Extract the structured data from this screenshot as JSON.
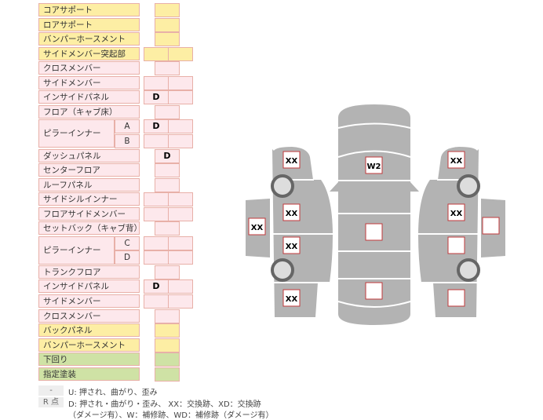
{
  "parts": [
    {
      "label": "コアサポート",
      "color": "yellow",
      "cols": 1,
      "marks": [
        ""
      ]
    },
    {
      "label": "ロアサポート",
      "color": "yellow",
      "cols": 1,
      "marks": [
        ""
      ]
    },
    {
      "label": "バンパーホースメント",
      "color": "yellow",
      "cols": 1,
      "marks": [
        ""
      ]
    },
    {
      "label": "サイドメンバー突起部",
      "color": "yellow",
      "cols": 2,
      "marks": [
        "",
        ""
      ]
    },
    {
      "label": "クロスメンバー",
      "color": "pink",
      "cols": 1,
      "marks": [
        ""
      ]
    },
    {
      "label": "サイドメンバー",
      "color": "pink",
      "cols": 2,
      "marks": [
        "",
        ""
      ]
    },
    {
      "label": "インサイドパネル",
      "color": "pink",
      "cols": 2,
      "marks": [
        "D",
        ""
      ]
    },
    {
      "label": "フロア（キャブ床）",
      "color": "pink",
      "cols": 1,
      "marks": [
        ""
      ]
    },
    {
      "label": "ピラーインナー",
      "color": "pink",
      "cols": 2,
      "sub": [
        "A",
        "B"
      ],
      "marks": [
        "D",
        "",
        "",
        ""
      ]
    },
    {
      "label": "ダッシュパネル",
      "color": "pink",
      "cols": 1,
      "marks": [
        "D"
      ]
    },
    {
      "label": "センターフロア",
      "color": "pink",
      "cols": 1,
      "marks": [
        ""
      ]
    },
    {
      "label": "ルーフパネル",
      "color": "pink",
      "cols": 1,
      "marks": [
        ""
      ]
    },
    {
      "label": "サイドシルインナー",
      "color": "pink",
      "cols": 2,
      "marks": [
        "",
        ""
      ]
    },
    {
      "label": "フロアサイドメンバー",
      "color": "pink",
      "cols": 2,
      "marks": [
        "",
        ""
      ]
    },
    {
      "label": "セットバック（キャブ背）",
      "color": "pink",
      "cols": 1,
      "marks": [
        ""
      ]
    },
    {
      "label": "ピラーインナー",
      "color": "pink",
      "cols": 2,
      "sub": [
        "C",
        "D"
      ],
      "marks": [
        "",
        "",
        "",
        ""
      ]
    },
    {
      "label": "トランクフロア",
      "color": "pink",
      "cols": 1,
      "marks": [
        ""
      ]
    },
    {
      "label": "インサイドパネル",
      "color": "pink",
      "cols": 2,
      "marks": [
        "D",
        ""
      ]
    },
    {
      "label": "サイドメンバー",
      "color": "pink",
      "cols": 2,
      "marks": [
        "",
        ""
      ]
    },
    {
      "label": "クロスメンバー",
      "color": "pink",
      "cols": 1,
      "marks": [
        ""
      ]
    },
    {
      "label": "バックパネル",
      "color": "yellow",
      "cols": 1,
      "marks": [
        ""
      ]
    },
    {
      "label": "バンパーホースメント",
      "color": "yellow",
      "cols": 1,
      "marks": [
        ""
      ]
    },
    {
      "label": "下回り",
      "color": "green",
      "cols": 1,
      "marks": [
        ""
      ]
    },
    {
      "label": "指定塗装",
      "color": "green",
      "cols": 1,
      "marks": [
        ""
      ]
    }
  ],
  "legend": {
    "key1": "-",
    "text1": "U: 押され、曲がり、歪み",
    "key2": "R 点",
    "text2": "D: 押され・曲がり・歪み、 XX：交換跡、XD：交換跡",
    "text3": "（ダメージ有）、W：補修跡、WD：補修跡（ダメージ有）"
  },
  "diagram": {
    "left": {
      "front_fender": "XX",
      "front_door": "XX",
      "rear_door": "XX",
      "rear_fender": "XX",
      "step": "XX"
    },
    "roof": {
      "hood": "",
      "roof_front": "W2",
      "roof_mid": "",
      "trunk": ""
    },
    "right": {
      "front_fender": "XX",
      "front_door": "XX",
      "rear_door": "",
      "rear_fender": "",
      "step": ""
    }
  },
  "colors": {
    "pink": "#fde8ec",
    "yellow": "#fdeea4",
    "green": "#cfe2a5",
    "border": "#e8b0a8",
    "body": "#b3b3b3",
    "mark_border": "#c0393b"
  }
}
